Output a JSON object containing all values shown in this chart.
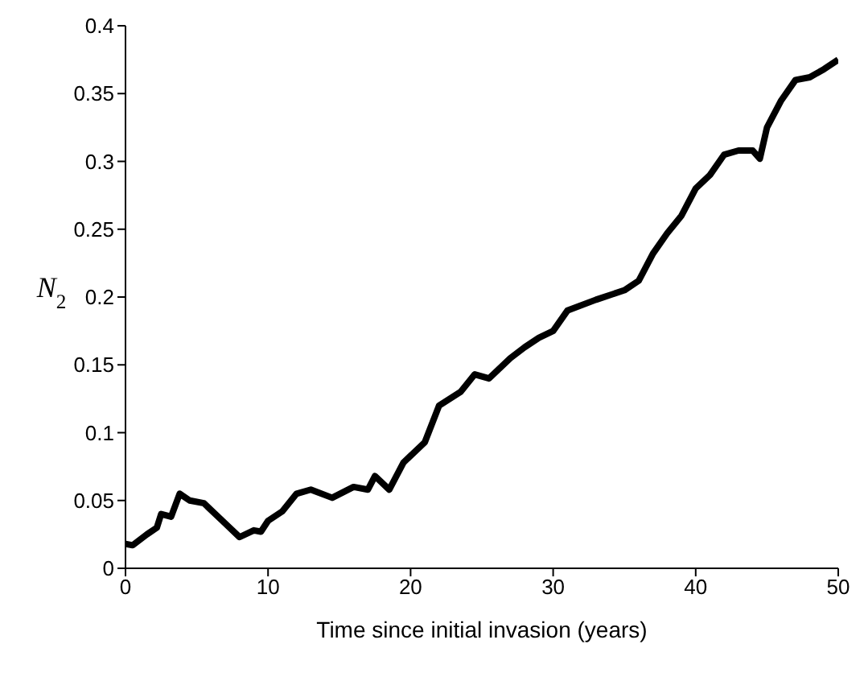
{
  "chart_data": {
    "type": "line",
    "xlabel": "Time since initial invasion (years)",
    "ylabel": "N$_{2}$",
    "x": [
      0,
      0.5,
      1.5,
      2.2,
      2.5,
      3.2,
      3.8,
      4.5,
      5.5,
      7,
      8,
      9,
      9.5,
      10,
      11,
      12,
      13,
      14.5,
      16,
      17,
      17.5,
      18.5,
      19.5,
      21,
      22,
      23.5,
      24.5,
      25.5,
      27,
      28,
      29,
      30,
      31,
      33,
      35,
      36,
      37,
      38,
      39,
      40,
      41,
      42,
      43,
      44,
      44.5,
      45,
      46,
      47,
      48,
      49,
      50
    ],
    "series": [
      {
        "color": "#000000",
        "values": [
          0.018,
          0.017,
          0.025,
          0.03,
          0.04,
          0.038,
          0.055,
          0.05,
          0.048,
          0.033,
          0.023,
          0.028,
          0.027,
          0.035,
          0.042,
          0.055,
          0.058,
          0.052,
          0.06,
          0.058,
          0.068,
          0.058,
          0.078,
          0.093,
          0.12,
          0.13,
          0.143,
          0.14,
          0.155,
          0.163,
          0.17,
          0.175,
          0.19,
          0.198,
          0.205,
          0.212,
          0.232,
          0.247,
          0.26,
          0.28,
          0.29,
          0.305,
          0.308,
          0.308,
          0.302,
          0.325,
          0.345,
          0.36,
          0.362,
          0.368,
          0.375
        ]
      }
    ],
    "xlim": [
      0,
      50
    ],
    "xticks": [
      0,
      10,
      20,
      30,
      40,
      50
    ],
    "ylim": [
      0,
      0.4
    ],
    "yticks": [
      0,
      0.05,
      0.1,
      0.15,
      0.2,
      0.25,
      0.3,
      0.35,
      0.4
    ],
    "grid": false,
    "legend": false,
    "marker": "none",
    "line_style": "solid"
  }
}
